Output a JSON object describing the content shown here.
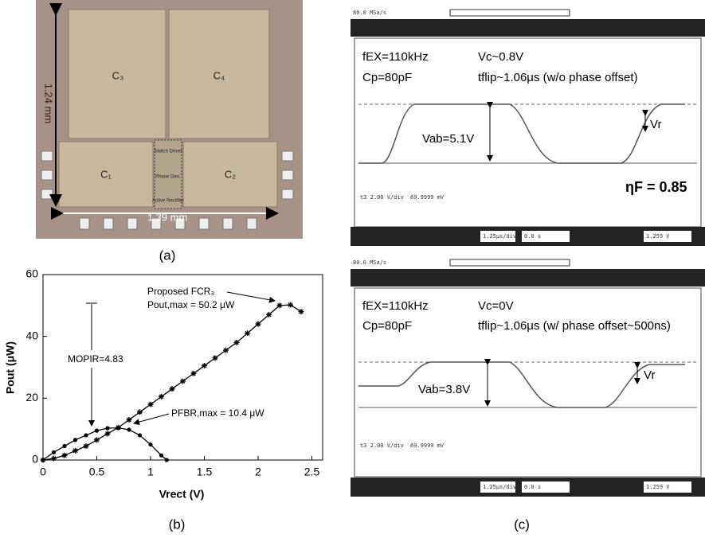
{
  "panel_a": {
    "label": "(a)",
    "blocks": [
      "C₃",
      "C₄",
      "C₁",
      "C₂"
    ],
    "circuits": [
      "Switch Driver",
      "Phase Gen.",
      "Active Rectifier"
    ],
    "height": "1.24 mm",
    "width": "1.39 mm"
  },
  "chart_data": {
    "type": "line",
    "label": "(b)",
    "xlabel": "Vrect (V)",
    "ylabel": "Pout (μW)",
    "xlim": [
      0,
      2.6
    ],
    "ylim": [
      0,
      60
    ],
    "xticks": [
      0,
      0.5,
      1,
      1.5,
      2,
      2.5
    ],
    "yticks": [
      0,
      20,
      40,
      60
    ],
    "annotations": [
      "Proposed FCR₃",
      "Pout,max = 50.2 μW",
      "MOPIR=4.83",
      "PFBR,max = 10.4 μW"
    ],
    "series": [
      {
        "color": "#000",
        "marker": "star",
        "x": [
          0,
          0.1,
          0.2,
          0.3,
          0.4,
          0.5,
          0.6,
          0.7,
          0.8,
          0.9,
          1.0,
          1.1,
          1.2,
          1.3,
          1.4,
          1.5,
          1.6,
          1.7,
          1.8,
          1.9,
          2.0,
          2.1,
          2.2,
          2.3,
          2.4
        ],
        "values": [
          0,
          0.5,
          1.5,
          3,
          4.5,
          6.5,
          8.5,
          10.5,
          13,
          15.5,
          18,
          20.5,
          23,
          25.5,
          28,
          30.5,
          33,
          35.5,
          38,
          41,
          44,
          47,
          50,
          50.2,
          48
        ]
      },
      {
        "color": "#000",
        "marker": "dot",
        "x": [
          0,
          0.1,
          0.2,
          0.3,
          0.4,
          0.5,
          0.6,
          0.7,
          0.8,
          0.9,
          1.0,
          1.1,
          1.15
        ],
        "values": [
          0,
          2.5,
          4.5,
          6.5,
          8,
          9.5,
          10.3,
          10.4,
          9.8,
          8,
          5,
          1.5,
          0
        ]
      }
    ]
  },
  "panel_c": {
    "label": "(c)",
    "top": {
      "rate": "80.0 MSa/s",
      "f": "fEX=110kHz",
      "vc": "Vc~0.8V",
      "cp": "Cp=80pF",
      "tflip": "tflip~1.06μs (w/o phase offset)",
      "vab": "Vab=5.1V",
      "vr": "Vr",
      "eta": "ηF = 0.85",
      "div": "t3 2.00 V/div",
      "mv": "69.9999 mV",
      "time": "1.25μs/div",
      "offset": "0.0 s",
      "trig": "1.259 V"
    },
    "bottom": {
      "rate": "80.0 MSa/s",
      "f": "fEX=110kHz",
      "vc": "Vc=0V",
      "cp": "Cp=80pF",
      "tflip": "tflip~1.06μs (w/ phase offset~500ns)",
      "vab": "Vab=3.8V",
      "vr": "Vr",
      "div": "t3 2.00 V/div",
      "mv": "69.9999 mV",
      "time": "1.25μs/div",
      "offset": "0.0 s",
      "trig": "1.259 V"
    }
  }
}
